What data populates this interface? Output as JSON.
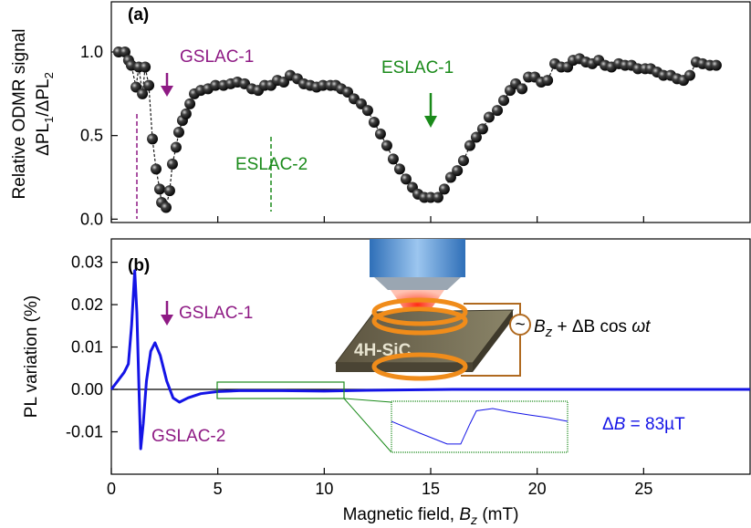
{
  "chart_data": [
    {
      "type": "scatter",
      "panel": "(a)",
      "color": "#1a1a1a",
      "ylabel": "Relative ODMR signal",
      "ylabel2": [
        "ΔPL",
        "1",
        "/ΔPL",
        "2"
      ],
      "xlim": [
        0,
        30
      ],
      "ylim": [
        -0.02,
        1.3
      ],
      "yticks": [
        {
          "value": 0,
          "label": "0.0"
        },
        {
          "value": 0.5,
          "label": "0.5"
        },
        {
          "value": 1,
          "label": "1.0"
        }
      ],
      "annotations": [
        "GSLAC-1",
        "ESLAC-1",
        "ESLAC-2"
      ],
      "x": [
        0.34,
        0.64,
        0.81,
        0.94,
        1.16,
        1.29,
        1.46,
        1.59,
        1.76,
        1.93,
        2.1,
        2.27,
        2.36,
        2.57,
        2.74,
        2.87,
        3.04,
        3.17,
        3.34,
        3.51,
        3.69,
        3.9,
        4.2,
        4.54,
        4.89,
        5.27,
        5.61,
        5.92,
        6.26,
        6.6,
        6.9,
        7.2,
        7.5,
        7.8,
        8.1,
        8.4,
        8.74,
        9.04,
        9.34,
        9.64,
        9.94,
        10.29,
        10.54,
        10.8,
        11.1,
        11.4,
        11.74,
        12.04,
        12.34,
        12.64,
        12.94,
        13.24,
        13.54,
        13.84,
        14.14,
        14.4,
        14.7,
        15.0,
        15.34,
        15.64,
        15.94,
        16.25,
        16.54,
        16.84,
        17.14,
        17.44,
        17.74,
        18.13,
        18.43,
        18.73,
        18.99,
        19.29,
        19.59,
        19.89,
        20.19,
        20.49,
        20.83,
        21.13,
        21.43,
        21.69,
        21.99,
        22.29,
        22.59,
        22.89,
        23.19,
        23.49,
        23.83,
        24.13,
        24.43,
        24.73,
        25.07,
        25.33,
        25.63,
        25.93,
        26.27,
        26.57,
        26.87,
        27.17,
        27.47,
        27.77,
        28.11,
        28.41
      ],
      "values": [
        1.0,
        1.0,
        0.95,
        0.92,
        0.79,
        0.91,
        0.75,
        0.91,
        0.8,
        0.48,
        0.3,
        0.18,
        0.1,
        0.07,
        0.17,
        0.33,
        0.43,
        0.52,
        0.59,
        0.63,
        0.69,
        0.75,
        0.77,
        0.78,
        0.8,
        0.8,
        0.81,
        0.82,
        0.81,
        0.78,
        0.77,
        0.8,
        0.8,
        0.83,
        0.82,
        0.86,
        0.84,
        0.81,
        0.8,
        0.79,
        0.8,
        0.8,
        0.8,
        0.78,
        0.76,
        0.72,
        0.69,
        0.65,
        0.58,
        0.51,
        0.44,
        0.36,
        0.3,
        0.24,
        0.19,
        0.15,
        0.13,
        0.13,
        0.13,
        0.18,
        0.25,
        0.29,
        0.35,
        0.44,
        0.49,
        0.54,
        0.61,
        0.65,
        0.71,
        0.77,
        0.81,
        0.78,
        0.85,
        0.85,
        0.82,
        0.83,
        0.93,
        0.91,
        0.91,
        0.95,
        0.96,
        0.94,
        0.93,
        0.95,
        0.92,
        0.91,
        0.93,
        0.92,
        0.92,
        0.9,
        0.9,
        0.9,
        0.88,
        0.86,
        0.86,
        0.84,
        0.83,
        0.86,
        0.94,
        0.93,
        0.92,
        0.92
      ]
    },
    {
      "type": "line",
      "panel": "(b)",
      "color": "#1414e6",
      "ylabel": "PL variation (%)",
      "xlabel": [
        "Magnetic field, ",
        "B",
        "z",
        " (mT)"
      ],
      "xlim": [
        0,
        30
      ],
      "xticks": [
        0,
        5,
        10,
        15,
        20,
        25
      ],
      "ylim": [
        -0.02,
        0.0355
      ],
      "yticks": [
        -0.01,
        {
          "value": 0,
          "label": "0.00"
        },
        0.01,
        0.02,
        0.03
      ],
      "annotations": [
        "GSLAC-1",
        "GSLAC-2"
      ],
      "x": [
        0,
        0.3,
        0.6,
        0.8,
        0.95,
        1.1,
        1.2,
        1.3,
        1.38,
        1.5,
        1.65,
        1.85,
        2.05,
        2.3,
        2.6,
        2.9,
        3.2,
        3.6,
        4.2,
        5,
        6,
        8,
        10,
        12,
        14,
        16,
        20,
        25,
        30
      ],
      "values": [
        0,
        0.002,
        0.004,
        0.006,
        0.015,
        0.028,
        0.018,
        0,
        -0.014,
        -0.008,
        0.002,
        0.009,
        0.011,
        0.008,
        0.002,
        -0.002,
        -0.003,
        -0.002,
        -0.001,
        -0.0005,
        -0.0003,
        -0.0003,
        -0.0004,
        -0.0002,
        -0.0001,
        0,
        0,
        0,
        0
      ],
      "inset": {
        "xlim": [
          5,
          10.95
        ],
        "ylim": [
          -0.0012,
          0.0004
        ],
        "x": [
          5.0,
          5.96,
          6.88,
          7.34,
          7.65,
          7.87,
          8.42,
          9.04,
          9.65,
          10.27,
          10.95
        ],
        "values": [
          -0.00023,
          -0.0006,
          -0.00094,
          -0.00094,
          -0.00031,
          0.0001,
          0.00017,
          6e-05,
          -3e-05,
          -0.00011,
          -0.00023
        ]
      },
      "illustration": {
        "sample": "4H-SiC",
        "source": "~",
        "drive": [
          "B",
          "z",
          " + ΔB cos ",
          "ω",
          "t"
        ],
        "delta": [
          "Δ",
          "B",
          " = 83µT"
        ]
      }
    }
  ]
}
